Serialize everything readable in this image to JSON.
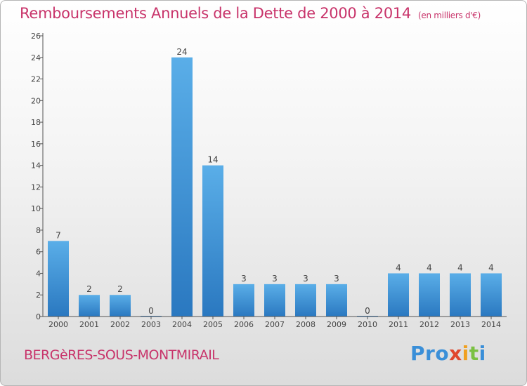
{
  "header": {
    "title": "Remboursements Annuels de la Dette de 2000 à 2014",
    "unit": "(en milliers d'€)"
  },
  "footer": {
    "commune": "BERGèRES-SOUS-MONTMIRAIL",
    "logo_parts": [
      "Pro",
      "x",
      "i",
      "t",
      "i"
    ]
  },
  "colors": {
    "title": "#c8336a",
    "bar_top": "#5aaee8",
    "bar_bottom": "#2a78c0",
    "axis": "#555555"
  },
  "chart_data": {
    "type": "bar",
    "categories": [
      "2000",
      "2001",
      "2002",
      "2003",
      "2004",
      "2005",
      "2006",
      "2007",
      "2008",
      "2009",
      "2010",
      "2011",
      "2012",
      "2013",
      "2014"
    ],
    "values": [
      7,
      2,
      2,
      0,
      24,
      14,
      3,
      3,
      3,
      3,
      0,
      4,
      4,
      4,
      4
    ],
    "data_labels": [
      "7",
      "2",
      "2",
      "0",
      "24",
      "14",
      "3",
      "3",
      "3",
      "3",
      "0",
      "4",
      "4",
      "4",
      "4"
    ],
    "ylim": [
      0,
      26
    ],
    "yticks": [
      "0",
      "2",
      "4",
      "6",
      "8",
      "10",
      "12",
      "14",
      "16",
      "18",
      "20",
      "22",
      "24",
      "26"
    ],
    "grid": false,
    "legend": "none"
  }
}
